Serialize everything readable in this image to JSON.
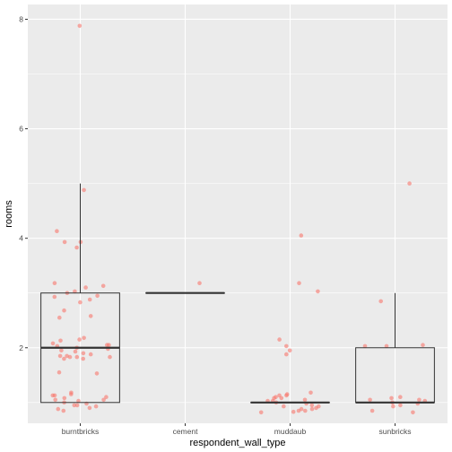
{
  "chart_data": {
    "type": "boxplot",
    "title": "",
    "xlabel": "respondent_wall_type",
    "ylabel": "rooms",
    "categories": [
      "burntbricks",
      "cement",
      "muddaub",
      "sunbricks"
    ],
    "ylim": [
      0.62,
      8.27
    ],
    "y_ticks": [
      2,
      4,
      6,
      8
    ],
    "grid": true,
    "legend": "none",
    "colors": {
      "panel": "#ebebeb",
      "grid_major": "#ffffff",
      "box_line": "#333333",
      "points": "#f8766d"
    },
    "boxes": [
      {
        "category": "burntbricks",
        "min": 1,
        "q1": 1,
        "median": 2,
        "q3": 3,
        "max": 5
      },
      {
        "category": "cement",
        "min": 3,
        "q1": 3,
        "median": 3,
        "q3": 3,
        "max": 3
      },
      {
        "category": "muddaub",
        "min": 1,
        "q1": 1,
        "median": 1,
        "q3": 1,
        "max": 1
      },
      {
        "category": "sunbricks",
        "min": 1,
        "q1": 1,
        "median": 1,
        "q3": 2,
        "max": 3
      }
    ],
    "points": [
      {
        "category": "burntbricks",
        "y": [
          7.88,
          4.88,
          4.13,
          3.93,
          3.83,
          3.93,
          3.18,
          3.13,
          3.1,
          3.03,
          3.0,
          2.95,
          2.88,
          2.93,
          2.83,
          2.68,
          2.58,
          2.55,
          2.18,
          2.15,
          2.13,
          2.08,
          2.05,
          2.05,
          2.03,
          2.0,
          1.98,
          1.95,
          1.93,
          1.9,
          1.88,
          1.85,
          1.85,
          1.83,
          1.83,
          1.8,
          1.8,
          1.83,
          1.55,
          1.53,
          1.18,
          1.15,
          1.13,
          1.1,
          1.08,
          1.05,
          1.03,
          1.0,
          0.98,
          0.95,
          0.93,
          0.9,
          0.88,
          0.85,
          0.95,
          1.05,
          1.13
        ]
      },
      {
        "category": "cement",
        "y": [
          3.18
        ]
      },
      {
        "category": "muddaub",
        "y": [
          4.05,
          3.18,
          3.03,
          2.15,
          2.03,
          1.95,
          1.88,
          1.18,
          1.15,
          1.13,
          1.1,
          1.08,
          1.05,
          1.03,
          1.0,
          0.98,
          0.95,
          0.93,
          0.9,
          0.88,
          0.85,
          0.85,
          0.83,
          0.82,
          1.13,
          1.08,
          1.03,
          0.93,
          0.88
        ]
      },
      {
        "category": "sunbricks",
        "y": [
          5.0,
          2.85,
          2.05,
          2.03,
          2.03,
          1.1,
          1.08,
          1.05,
          1.03,
          1.0,
          0.98,
          0.95,
          0.93,
          0.85,
          0.82,
          1.05
        ]
      }
    ]
  }
}
